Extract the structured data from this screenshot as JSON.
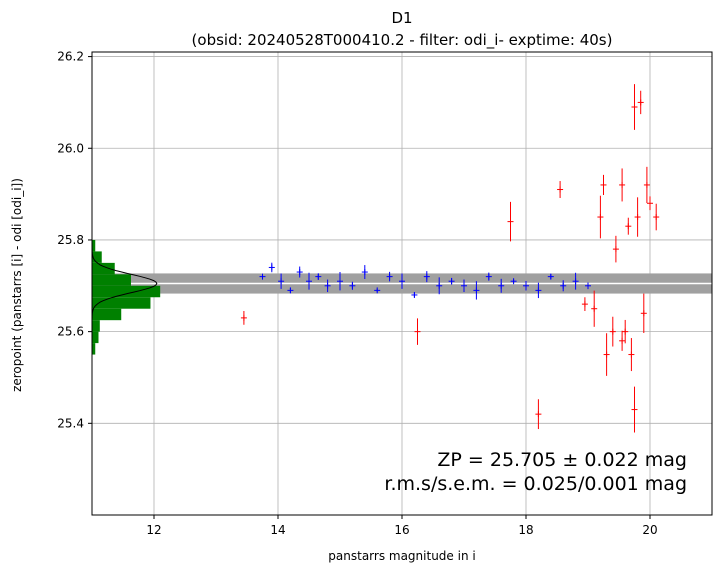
{
  "chart_data": {
    "type": "scatter",
    "title": "D1",
    "subtitle": "(obsid: 20240528T000410.2 - filter: odi_i- exptime: 40s)",
    "xlabel": "panstarrs magnitude in i",
    "ylabel": "zeropoint (panstarrs [i] - odi [odi_i])",
    "xlim": [
      11.0,
      21.0
    ],
    "ylim": [
      25.2,
      26.21
    ],
    "xticks": [
      "12",
      "14",
      "16",
      "18",
      "20"
    ],
    "yticks": [
      "25.4",
      "25.6",
      "25.8",
      "26.0",
      "26.2"
    ],
    "grid": true,
    "zeropoint": 25.705,
    "zeropoint_err": 0.022,
    "annotation": [
      "ZP = 25.705 ± 0.022 mag",
      "r.m.s/s.e.m. = 0.025/0.001 mag"
    ],
    "colors": {
      "used": "#0000ff",
      "rejected": "#ff0000",
      "histogram": "#008000",
      "band": "#a0a0a0",
      "gauss": "#000000"
    },
    "series": [
      {
        "color": "blue",
        "points": [
          [
            13.75,
            25.72
          ],
          [
            13.9,
            25.74
          ],
          [
            14.05,
            25.71
          ],
          [
            14.2,
            25.69
          ],
          [
            14.35,
            25.73
          ],
          [
            14.5,
            25.71
          ],
          [
            14.65,
            25.72
          ],
          [
            14.8,
            25.7
          ],
          [
            15.0,
            25.71
          ],
          [
            15.2,
            25.7
          ],
          [
            15.4,
            25.73
          ],
          [
            15.6,
            25.69
          ],
          [
            15.8,
            25.72
          ],
          [
            16.0,
            25.71
          ],
          [
            16.2,
            25.68
          ],
          [
            16.4,
            25.72
          ],
          [
            16.6,
            25.7
          ],
          [
            16.8,
            25.71
          ],
          [
            17.0,
            25.7
          ],
          [
            17.2,
            25.69
          ],
          [
            17.4,
            25.72
          ],
          [
            17.6,
            25.7
          ],
          [
            17.8,
            25.71
          ],
          [
            18.0,
            25.7
          ],
          [
            18.2,
            25.69
          ],
          [
            18.4,
            25.72
          ],
          [
            18.6,
            25.7
          ],
          [
            18.8,
            25.71
          ],
          [
            19.0,
            25.7
          ]
        ],
        "error_range": [
          0.004,
          0.02
        ]
      },
      {
        "color": "red",
        "points": [
          [
            13.45,
            25.63
          ],
          [
            16.25,
            25.6
          ],
          [
            17.75,
            25.84
          ],
          [
            18.55,
            25.91
          ],
          [
            18.2,
            25.42
          ],
          [
            19.2,
            25.85
          ],
          [
            19.25,
            25.92
          ],
          [
            19.55,
            25.92
          ],
          [
            19.75,
            26.09
          ],
          [
            19.85,
            26.1
          ],
          [
            19.95,
            25.92
          ],
          [
            20.0,
            25.88
          ],
          [
            20.1,
            25.85
          ],
          [
            19.8,
            25.85
          ],
          [
            19.65,
            25.83
          ],
          [
            19.4,
            25.6
          ],
          [
            19.3,
            25.55
          ],
          [
            19.55,
            25.58
          ],
          [
            19.7,
            25.55
          ],
          [
            19.75,
            25.43
          ],
          [
            19.6,
            25.6
          ],
          [
            19.1,
            25.65
          ],
          [
            18.95,
            25.66
          ],
          [
            19.45,
            25.78
          ],
          [
            19.9,
            25.64
          ]
        ],
        "error_range": [
          0.015,
          0.05
        ]
      }
    ],
    "histogram": {
      "bins": [
        25.55,
        25.575,
        25.6,
        25.625,
        25.65,
        25.675,
        25.7,
        25.725,
        25.75,
        25.775,
        25.8
      ],
      "counts": [
        0.05,
        0.1,
        0.12,
        0.45,
        0.9,
        1.05,
        0.6,
        0.35,
        0.15,
        0.05
      ]
    }
  }
}
